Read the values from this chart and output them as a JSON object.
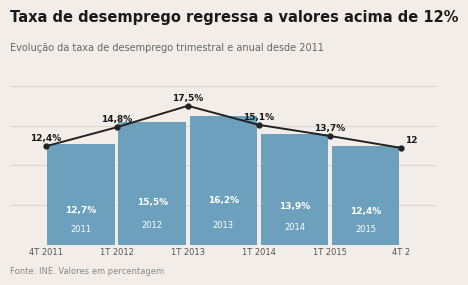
{
  "title": "Taxa de desemprego regressa a valores acima de 12%",
  "subtitle": "Evolução da taxa de desemprego trimestral e anual desde 2011",
  "footnote": "Fonte: INE. Valores em percentagem",
  "bar_categories": [
    "2011",
    "2012",
    "2013",
    "2014",
    "2015"
  ],
  "bar_values": [
    12.7,
    15.5,
    16.2,
    13.9,
    12.4
  ],
  "bar_color": "#6ca0bc",
  "line_x_labels": [
    "4T 2011",
    "1T 2012",
    "1T 2013",
    "1T 2014",
    "1T 2015",
    "4T 2"
  ],
  "line_values": [
    12.4,
    14.8,
    17.5,
    15.1,
    13.7,
    12.2
  ],
  "line_color": "#222222",
  "line_label_values": [
    "12,4%",
    "14,8%",
    "17,5%",
    "15,1%",
    "13,7%",
    "12"
  ],
  "title_fontsize": 10.5,
  "subtitle_fontsize": 7,
  "footnote_fontsize": 6,
  "background_color": "#f2ede8",
  "ylim": [
    0,
    20
  ],
  "yticks": [
    5,
    10,
    15,
    20
  ],
  "grid_color": "#d8d0c8",
  "bar_label_fontsize": 6.5,
  "line_label_fontsize": 6.5
}
